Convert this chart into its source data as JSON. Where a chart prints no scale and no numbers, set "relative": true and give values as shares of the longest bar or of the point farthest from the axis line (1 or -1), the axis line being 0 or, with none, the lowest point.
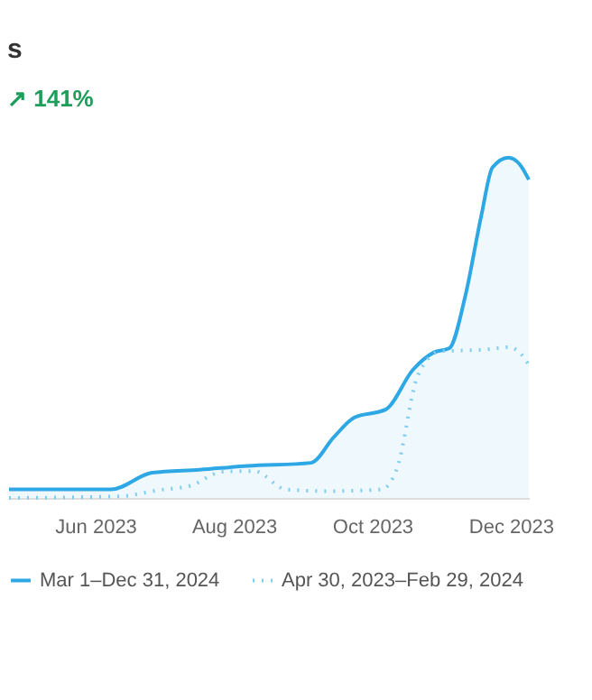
{
  "chart_data": {
    "type": "line",
    "title": "s",
    "annotations": [
      "↗ 141%"
    ],
    "relative": true,
    "grid": false,
    "legend": "bottom",
    "xlim": [
      "2023-04-24",
      "2023-12-09"
    ],
    "xticks": [
      {
        "value": "2023-06-01",
        "label": "Jun 2023"
      },
      {
        "value": "2023-08-01",
        "label": "Aug 2023"
      },
      {
        "value": "2023-10-01",
        "label": "Oct 2023"
      },
      {
        "value": "2023-12-01",
        "label": "Dec 2023"
      }
    ],
    "series": [
      {
        "name": "Mar 1–Dec 31, 2024",
        "type": "area",
        "color": "#2ea8e5",
        "line_style": "solid",
        "x": [
          "2023-04-24",
          "2023-06-08",
          "2023-06-26",
          "2023-07-17",
          "2023-08-07",
          "2023-09-04",
          "2023-09-14",
          "2023-09-23",
          "2023-10-07",
          "2023-10-19",
          "2023-10-28",
          "2023-11-04",
          "2023-11-11",
          "2023-11-18",
          "2023-11-23",
          "2023-11-30",
          "2023-12-05",
          "2023-12-09"
        ],
        "values": [
          0.025,
          0.025,
          0.074,
          0.083,
          0.094,
          0.103,
          0.178,
          0.236,
          0.26,
          0.377,
          0.427,
          0.44,
          0.593,
          0.827,
          0.971,
          1,
          0.98,
          0.935
        ]
      },
      {
        "name": "Apr 30, 2023–Feb 29, 2024",
        "type": "line",
        "color": "#7fcdf0",
        "line_style": "dotted",
        "x": [
          "2023-04-24",
          "2023-06-12",
          "2023-06-29",
          "2023-07-13",
          "2023-07-27",
          "2023-08-10",
          "2023-08-24",
          "2023-09-11",
          "2023-10-05",
          "2023-10-12",
          "2023-10-21",
          "2023-10-31",
          "2023-11-20",
          "2023-11-30",
          "2023-12-05",
          "2023-12-09"
        ],
        "values": [
          0,
          0.005,
          0.023,
          0.036,
          0.077,
          0.079,
          0.025,
          0.02,
          0.025,
          0.088,
          0.358,
          0.431,
          0.436,
          0.443,
          0.427,
          0.391
        ]
      }
    ]
  }
}
